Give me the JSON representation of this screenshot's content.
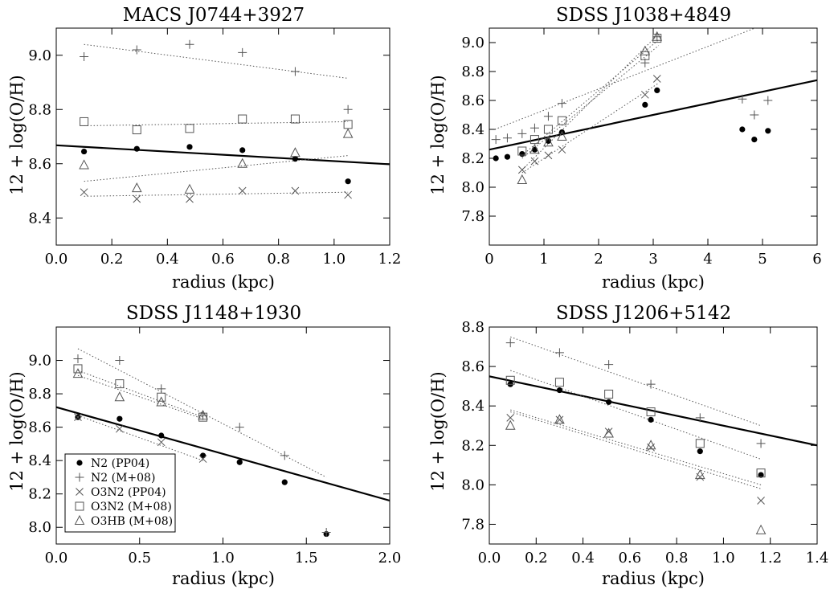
{
  "figure": {
    "description_free": true
  },
  "legend": {
    "entries": [
      {
        "marker": "filled-circle",
        "label": "N2 (PP04)"
      },
      {
        "marker": "plus",
        "label": "N2 (M+08)"
      },
      {
        "marker": "cross",
        "label": "O3N2 (PP04)"
      },
      {
        "marker": "open-square",
        "label": "O3N2 (M+08)"
      },
      {
        "marker": "open-triangle",
        "label": "O3HB (M+08)"
      }
    ]
  },
  "chart_data": [
    {
      "type": "scatter",
      "title": "MACS J0744+3927",
      "xlabel": "radius (kpc)",
      "ylabel": "12 + log(O/H)",
      "xlim": [
        0.0,
        1.2
      ],
      "ylim": [
        8.3,
        9.1
      ],
      "xticks": [
        0.0,
        0.2,
        0.4,
        0.6,
        0.8,
        1.0,
        1.2
      ],
      "xtick_labels": [
        "0.0",
        "0.2",
        "0.4",
        "0.6",
        "0.8",
        "1.0",
        "1.2"
      ],
      "yticks": [
        8.4,
        8.6,
        8.8,
        9.0
      ],
      "ytick_labels": [
        "8.4",
        "8.6",
        "8.8",
        "9.0"
      ],
      "series": [
        {
          "name": "N2 (PP04)",
          "marker": "filled-circle",
          "x": [
            0.1,
            0.29,
            0.48,
            0.67,
            0.86,
            1.05
          ],
          "y": [
            8.645,
            8.655,
            8.662,
            8.65,
            8.618,
            8.535
          ]
        },
        {
          "name": "N2 (M+08)",
          "marker": "plus",
          "x": [
            0.1,
            0.29,
            0.48,
            0.67,
            0.86,
            1.05
          ],
          "y": [
            8.995,
            9.02,
            9.04,
            9.01,
            8.94,
            8.8
          ]
        },
        {
          "name": "O3N2 (PP04)",
          "marker": "cross",
          "x": [
            0.1,
            0.29,
            0.48,
            0.67,
            0.86,
            1.05
          ],
          "y": [
            8.495,
            8.47,
            8.47,
            8.5,
            8.5,
            8.485
          ]
        },
        {
          "name": "O3N2 (M+08)",
          "marker": "open-square",
          "x": [
            0.1,
            0.29,
            0.48,
            0.67,
            0.86,
            1.05
          ],
          "y": [
            8.755,
            8.725,
            8.73,
            8.765,
            8.765,
            8.745
          ]
        },
        {
          "name": "O3HB (M+08)",
          "marker": "open-triangle",
          "x": [
            0.1,
            0.29,
            0.48,
            0.67,
            0.86,
            1.05
          ],
          "y": [
            8.595,
            8.51,
            8.505,
            8.6,
            8.64,
            8.71
          ]
        }
      ],
      "fit_lines": [
        {
          "style": "solid",
          "x": [
            0.0,
            1.2
          ],
          "y": [
            8.668,
            8.598
          ]
        },
        {
          "style": "dotted",
          "x": [
            0.1,
            1.05
          ],
          "y": [
            9.04,
            8.915
          ]
        },
        {
          "style": "dotted",
          "x": [
            0.1,
            1.05
          ],
          "y": [
            8.74,
            8.755
          ]
        },
        {
          "style": "dotted",
          "x": [
            0.1,
            1.05
          ],
          "y": [
            8.535,
            8.63
          ]
        },
        {
          "style": "dotted",
          "x": [
            0.1,
            1.05
          ],
          "y": [
            8.48,
            8.495
          ]
        }
      ]
    },
    {
      "type": "scatter",
      "title": "SDSS J1038+4849",
      "xlabel": "radius (kpc)",
      "ylabel": "12 + log(O/H)",
      "xlim": [
        0,
        6
      ],
      "ylim": [
        7.6,
        9.1
      ],
      "xticks": [
        0,
        1,
        2,
        3,
        4,
        5,
        6
      ],
      "xtick_labels": [
        "0",
        "1",
        "2",
        "3",
        "4",
        "5",
        "6"
      ],
      "yticks": [
        7.8,
        8.0,
        8.2,
        8.4,
        8.6,
        8.8,
        9.0
      ],
      "ytick_labels": [
        "7.8",
        "8.0",
        "8.2",
        "8.4",
        "8.6",
        "8.8",
        "9.0"
      ],
      "series": [
        {
          "name": "N2 (PP04)",
          "marker": "filled-circle",
          "x": [
            0.12,
            0.33,
            0.6,
            0.83,
            1.08,
            1.33,
            2.85,
            3.07,
            4.63,
            4.85,
            5.1
          ],
          "y": [
            8.2,
            8.21,
            8.23,
            8.26,
            8.32,
            8.38,
            8.57,
            8.67,
            8.4,
            8.33,
            8.39
          ]
        },
        {
          "name": "N2 (M+08)",
          "marker": "plus",
          "x": [
            0.12,
            0.33,
            0.6,
            0.83,
            1.08,
            1.33,
            2.85,
            3.07,
            4.63,
            4.85,
            5.1
          ],
          "y": [
            8.33,
            8.34,
            8.37,
            8.41,
            8.49,
            8.58,
            8.86,
            9.04,
            8.61,
            8.5,
            8.6
          ]
        },
        {
          "name": "O3N2 (PP04)",
          "marker": "cross",
          "x": [
            0.6,
            0.83,
            1.08,
            1.33,
            2.85,
            3.07
          ],
          "y": [
            8.12,
            8.18,
            8.22,
            8.26,
            8.64,
            8.75
          ]
        },
        {
          "name": "O3N2 (M+08)",
          "marker": "open-square",
          "x": [
            0.6,
            0.83,
            1.08,
            1.33,
            2.85,
            3.07
          ],
          "y": [
            8.25,
            8.33,
            8.4,
            8.46,
            8.91,
            9.03
          ]
        },
        {
          "name": "O3HB (M+08)",
          "marker": "open-triangle",
          "x": [
            0.6,
            0.83,
            1.08,
            1.33,
            2.85,
            3.07
          ],
          "y": [
            8.05,
            8.26,
            8.31,
            8.35,
            8.94,
            9.04
          ]
        }
      ],
      "fit_lines": [
        {
          "style": "solid",
          "x": [
            0.0,
            6.0
          ],
          "y": [
            8.26,
            8.74
          ]
        },
        {
          "style": "dotted",
          "x": [
            0.1,
            5.2
          ],
          "y": [
            8.4,
            9.15
          ]
        },
        {
          "style": "dotted",
          "x": [
            0.6,
            3.1
          ],
          "y": [
            8.22,
            9.02
          ]
        },
        {
          "style": "dotted",
          "x": [
            0.6,
            3.1
          ],
          "y": [
            8.1,
            8.72
          ]
        },
        {
          "style": "dotted",
          "x": [
            0.6,
            3.1
          ],
          "y": [
            8.2,
            8.98
          ]
        },
        {
          "style": "dotted",
          "x": [
            0.6,
            3.1
          ],
          "y": [
            8.12,
            9.06
          ]
        }
      ]
    },
    {
      "type": "scatter",
      "title": "SDSS J1148+1930",
      "xlabel": "radius (kpc)",
      "ylabel": "12 + log(O/H)",
      "xlim": [
        0.0,
        2.0
      ],
      "ylim": [
        7.9,
        9.2
      ],
      "xticks": [
        0.0,
        0.5,
        1.0,
        1.5,
        2.0
      ],
      "xtick_labels": [
        "0.0",
        "0.5",
        "1.0",
        "1.5",
        "2.0"
      ],
      "yticks": [
        8.0,
        8.2,
        8.4,
        8.6,
        8.8,
        9.0
      ],
      "ytick_labels": [
        "8.0",
        "8.2",
        "8.4",
        "8.6",
        "8.8",
        "9.0"
      ],
      "series": [
        {
          "name": "N2 (PP04)",
          "marker": "filled-circle",
          "x": [
            0.13,
            0.38,
            0.63,
            0.88,
            1.1,
            1.37,
            1.62
          ],
          "y": [
            8.66,
            8.65,
            8.55,
            8.43,
            8.39,
            8.27,
            7.96
          ]
        },
        {
          "name": "N2 (M+08)",
          "marker": "plus",
          "x": [
            0.13,
            0.38,
            0.63,
            0.88,
            1.1,
            1.37,
            1.62
          ],
          "y": [
            9.01,
            9.0,
            8.83,
            8.67,
            8.6,
            8.43,
            7.97
          ]
        },
        {
          "name": "O3N2 (PP04)",
          "marker": "cross",
          "x": [
            0.13,
            0.38,
            0.63,
            0.88
          ],
          "y": [
            8.66,
            8.59,
            8.51,
            8.41
          ]
        },
        {
          "name": "O3N2 (M+08)",
          "marker": "open-square",
          "x": [
            0.13,
            0.38,
            0.63,
            0.88
          ],
          "y": [
            8.95,
            8.86,
            8.78,
            8.66
          ]
        },
        {
          "name": "O3HB (M+08)",
          "marker": "open-triangle",
          "x": [
            0.13,
            0.38,
            0.63,
            0.88
          ],
          "y": [
            8.92,
            8.78,
            8.75,
            8.67
          ]
        }
      ],
      "fit_lines": [
        {
          "style": "solid",
          "x": [
            0.0,
            2.0
          ],
          "y": [
            8.72,
            8.16
          ]
        },
        {
          "style": "dotted",
          "x": [
            0.13,
            1.62
          ],
          "y": [
            9.07,
            8.3
          ]
        },
        {
          "style": "dotted",
          "x": [
            0.13,
            0.88
          ],
          "y": [
            8.94,
            8.66
          ]
        },
        {
          "style": "dotted",
          "x": [
            0.13,
            0.88
          ],
          "y": [
            8.91,
            8.65
          ]
        },
        {
          "style": "dotted",
          "x": [
            0.13,
            0.88
          ],
          "y": [
            8.67,
            8.4
          ]
        }
      ]
    },
    {
      "type": "scatter",
      "title": "SDSS J1206+5142",
      "xlabel": "radius (kpc)",
      "ylabel": "12 + log(O/H)",
      "xlim": [
        0.0,
        1.4
      ],
      "ylim": [
        7.7,
        8.8
      ],
      "xticks": [
        0.0,
        0.2,
        0.4,
        0.6,
        0.8,
        1.0,
        1.2,
        1.4
      ],
      "xtick_labels": [
        "0.0",
        "0.2",
        "0.4",
        "0.6",
        "0.8",
        "1.0",
        "1.2",
        "1.4"
      ],
      "yticks": [
        7.8,
        8.0,
        8.2,
        8.4,
        8.6,
        8.8
      ],
      "ytick_labels": [
        "7.8",
        "8.0",
        "8.2",
        "8.4",
        "8.6",
        "8.8"
      ],
      "series": [
        {
          "name": "N2 (PP04)",
          "marker": "filled-circle",
          "x": [
            0.09,
            0.3,
            0.51,
            0.69,
            0.9,
            1.16
          ],
          "y": [
            8.51,
            8.48,
            8.42,
            8.33,
            8.17,
            8.05
          ]
        },
        {
          "name": "N2 (M+08)",
          "marker": "plus",
          "x": [
            0.09,
            0.3,
            0.51,
            0.69,
            0.9,
            1.16
          ],
          "y": [
            8.72,
            8.67,
            8.61,
            8.51,
            8.34,
            8.21
          ]
        },
        {
          "name": "O3N2 (PP04)",
          "marker": "cross",
          "x": [
            0.09,
            0.3,
            0.51,
            0.69,
            0.9,
            1.16
          ],
          "y": [
            8.34,
            8.33,
            8.27,
            8.19,
            8.04,
            7.92
          ]
        },
        {
          "name": "O3N2 (M+08)",
          "marker": "open-square",
          "x": [
            0.09,
            0.3,
            0.51,
            0.69,
            0.9,
            1.16
          ],
          "y": [
            8.53,
            8.52,
            8.46,
            8.37,
            8.21,
            8.06
          ]
        },
        {
          "name": "O3HB (M+08)",
          "marker": "open-triangle",
          "x": [
            0.09,
            0.3,
            0.51,
            0.69,
            0.9,
            1.16
          ],
          "y": [
            8.3,
            8.33,
            8.26,
            8.2,
            8.05,
            7.77
          ]
        }
      ],
      "fit_lines": [
        {
          "style": "solid",
          "x": [
            0.0,
            1.4
          ],
          "y": [
            8.55,
            8.2
          ]
        },
        {
          "style": "dotted",
          "x": [
            0.09,
            1.16
          ],
          "y": [
            8.75,
            8.3
          ]
        },
        {
          "style": "dotted",
          "x": [
            0.09,
            1.16
          ],
          "y": [
            8.58,
            8.13
          ]
        },
        {
          "style": "dotted",
          "x": [
            0.09,
            1.16
          ],
          "y": [
            8.38,
            8.0
          ]
        },
        {
          "style": "dotted",
          "x": [
            0.09,
            1.16
          ],
          "y": [
            8.37,
            7.98
          ]
        }
      ]
    }
  ]
}
